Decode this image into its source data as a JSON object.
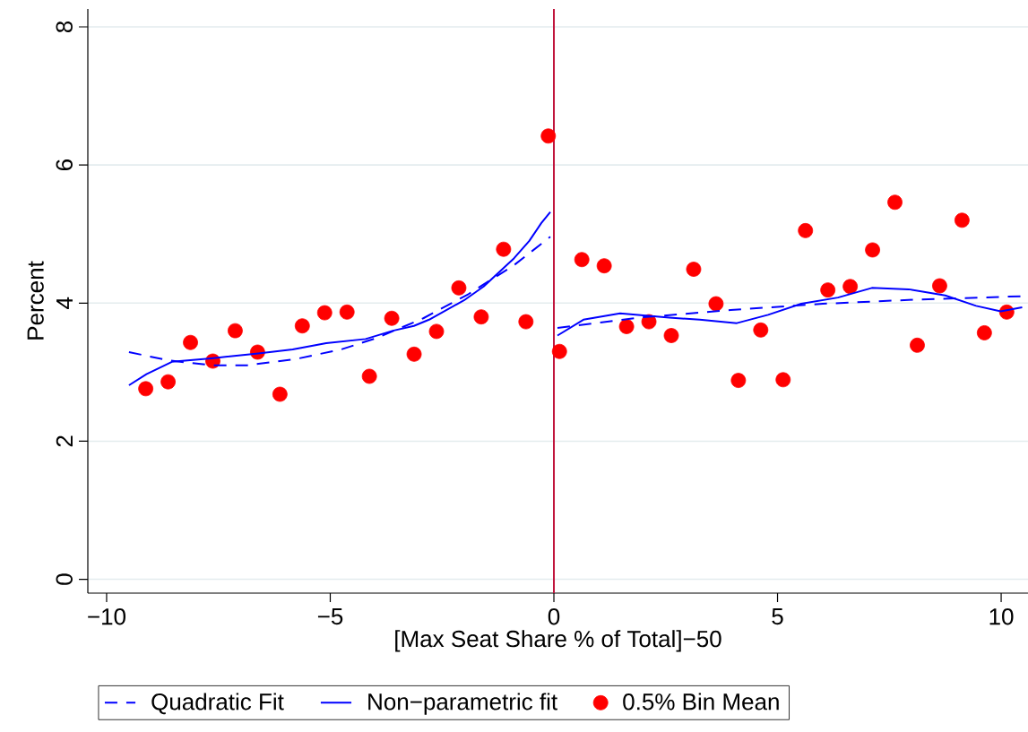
{
  "chart_data": {
    "type": "scatter",
    "xlabel": "[Max Seat Share % of Total]−50",
    "ylabel": "Percent",
    "xlim": [
      -10.42,
      10.6
    ],
    "ylim": [
      -0.2,
      8.26
    ],
    "xticks": [
      {
        "value": -10,
        "label": "−10"
      },
      {
        "value": -5,
        "label": "−5"
      },
      0,
      5,
      10
    ],
    "yticks": [
      0,
      2,
      4,
      6,
      8
    ],
    "grid": "y",
    "legend": "bottom",
    "ref_lines": [
      {
        "axis": "x",
        "value": 0,
        "color": "#c0143c"
      }
    ],
    "series": [
      {
        "name": "Quadratic Fit",
        "type": "line",
        "color": "#0000ff",
        "line_style": "dashed",
        "marker": "none",
        "x": [
          -9.5,
          -8.61,
          -7.66,
          -6.85,
          -5.77,
          -4.75,
          -3.94,
          -2.92,
          -1.91,
          -0.89,
          -0.08,
          0,
          0.08,
          1.9,
          3.95,
          6.01,
          8.07,
          10.47
        ],
        "values": [
          3.29,
          3.17,
          3.1,
          3.1,
          3.19,
          3.33,
          3.5,
          3.78,
          4.13,
          4.55,
          4.96,
          null,
          3.64,
          3.79,
          3.9,
          3.99,
          4.05,
          4.1
        ]
      },
      {
        "name": "Non−parametric fit",
        "type": "line",
        "color": "#0000ff",
        "line_style": "solid",
        "marker": "none",
        "x": [
          -9.5,
          -9.11,
          -8.54,
          -7.66,
          -6.61,
          -5.84,
          -5.09,
          -4.21,
          -3.6,
          -3.13,
          -2.79,
          -2.01,
          -1.57,
          -0.89,
          -0.55,
          -0.28,
          -0.08,
          0,
          0.08,
          0.66,
          1.48,
          2.58,
          3.26,
          4.09,
          4.79,
          5.53,
          6.35,
          7.11,
          7.93,
          8.75,
          9.44,
          9.99,
          10.47
        ],
        "values": [
          2.81,
          2.97,
          3.15,
          3.2,
          3.27,
          3.33,
          3.42,
          3.48,
          3.6,
          3.67,
          3.76,
          4.04,
          4.24,
          4.65,
          4.9,
          5.16,
          5.32,
          null,
          3.53,
          3.76,
          3.85,
          3.79,
          3.76,
          3.71,
          3.83,
          3.99,
          4.08,
          4.22,
          4.2,
          4.11,
          3.96,
          3.88,
          3.94
        ]
      },
      {
        "name": "0.5% Bin Mean",
        "color": "#ff0000",
        "marker": "circle",
        "x": [
          -9.125,
          -8.625,
          -8.125,
          -7.625,
          -7.125,
          -6.625,
          -6.125,
          -5.625,
          -5.125,
          -4.625,
          -4.125,
          -3.625,
          -3.125,
          -2.625,
          -2.125,
          -1.625,
          -1.125,
          -0.625,
          -0.125,
          0.125,
          0.625,
          1.125,
          1.625,
          2.125,
          2.625,
          3.125,
          3.625,
          4.125,
          4.625,
          5.125,
          5.625,
          6.125,
          6.625,
          7.125,
          7.625,
          8.125,
          8.625,
          9.125,
          9.625,
          10.125
        ],
        "values": [
          2.76,
          2.86,
          3.43,
          3.16,
          3.6,
          3.29,
          2.68,
          3.67,
          3.86,
          3.87,
          2.94,
          3.78,
          3.26,
          3.59,
          4.22,
          3.8,
          4.78,
          3.73,
          6.42,
          3.3,
          4.63,
          4.54,
          3.66,
          3.73,
          3.53,
          4.49,
          3.99,
          2.88,
          3.61,
          2.89,
          5.05,
          4.19,
          4.24,
          4.77,
          5.46,
          3.39,
          4.25,
          5.2,
          3.57,
          3.87
        ]
      }
    ]
  }
}
